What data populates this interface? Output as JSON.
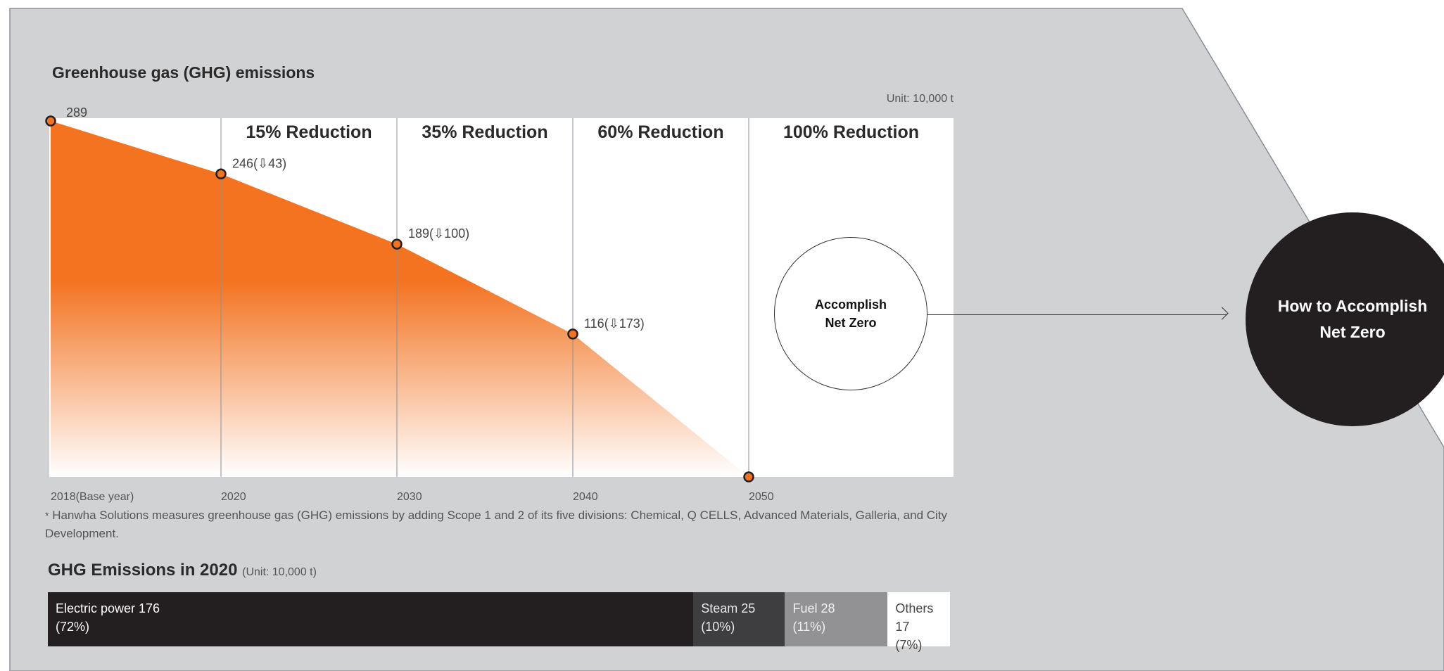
{
  "title": "Greenhouse gas (GHG) emissions",
  "unit_label": "Unit: 10,000 t",
  "chart_data": {
    "type": "area",
    "x": [
      "2018(Base year)",
      "2020",
      "2030",
      "2040",
      "2050"
    ],
    "values": [
      289,
      246,
      189,
      116,
      0
    ],
    "point_labels": [
      "289",
      "246(⇩43)",
      "189(⇩100)",
      "116(⇩173)",
      ""
    ],
    "reduction_labels": [
      "15% Reduction",
      "35% Reduction",
      "60% Reduction",
      "100% Reduction"
    ],
    "ylim": [
      0,
      289
    ],
    "color": "#f37321"
  },
  "net_zero_label": "Accomplish Net Zero",
  "how_to_label": "How to Accomplish Net Zero",
  "footnote": {
    "star": "*",
    "text": "Hanwha Solutions measures greenhouse gas (GHG) emissions by adding Scope 1 and 2 of its five divisions: Chemical, Q CELLS, Advanced Materials, Galleria, and City Development."
  },
  "breakdown": {
    "title": "GHG Emissions in 2020",
    "unit": "(Unit: 10,000 t)",
    "items": [
      {
        "label": "Electric power 176",
        "pct": "(72%)",
        "value": 176,
        "color": "#231f20",
        "text_color": "#ffffff"
      },
      {
        "label": "Steam 25",
        "pct": "(10%)",
        "value": 25,
        "color": "#3e3e40",
        "text_color": "#e8e8e8"
      },
      {
        "label": "Fuel 28",
        "pct": "(11%)",
        "value": 28,
        "color": "#929295",
        "text_color": "#f0f0f0"
      },
      {
        "label": "Others 17",
        "pct": "(7%)",
        "value": 17,
        "color": "#ffffff",
        "text_color": "#444444"
      }
    ]
  }
}
